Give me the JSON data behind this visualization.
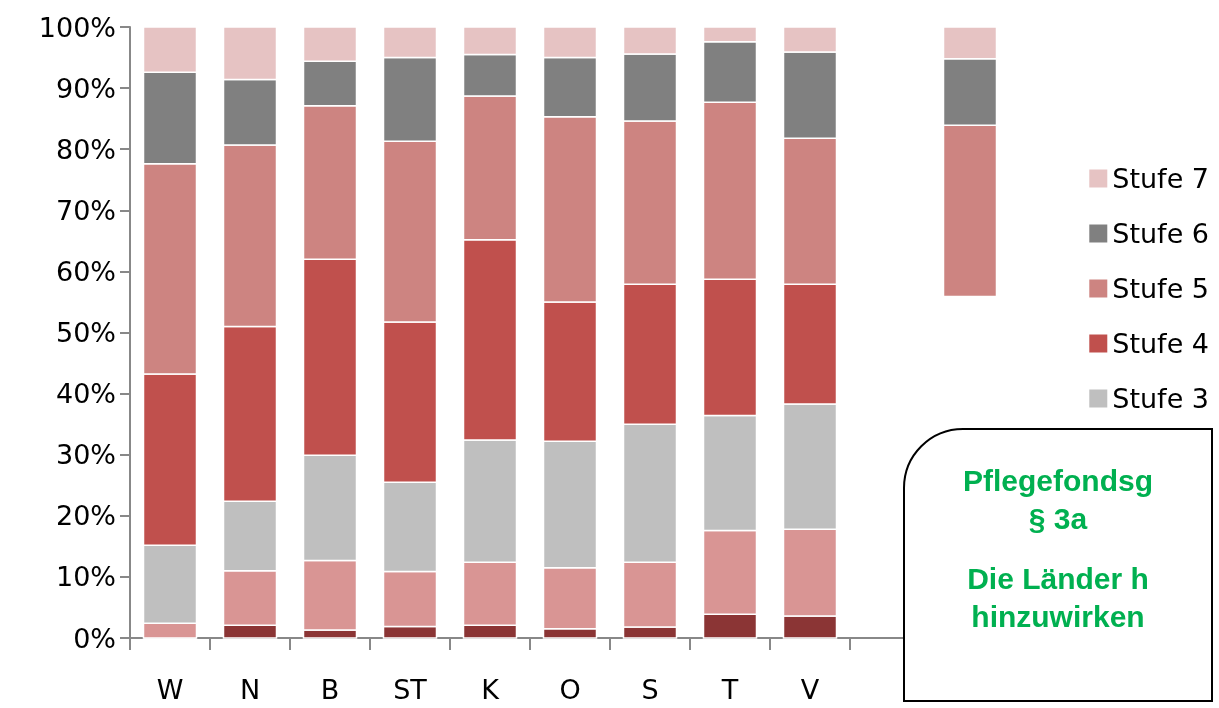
{
  "chart_data": {
    "type": "bar",
    "stacked": true,
    "categories": [
      "W",
      "N",
      "B",
      "ST",
      "K",
      "O",
      "S",
      "T",
      "V",
      null,
      null
    ],
    "series": [
      {
        "color": "#8b3535",
        "values": [
          0,
          2.1,
          1.3,
          1.9,
          2.1,
          1.5,
          1.8,
          3.9,
          3.6,
          null,
          null
        ]
      },
      {
        "color": "#d99594",
        "values": [
          2.4,
          8.9,
          11.4,
          9.0,
          10.3,
          10.0,
          10.6,
          13.7,
          14.2,
          null,
          null
        ]
      },
      {
        "name": "Stufe 3",
        "color": "#bfbfbf",
        "values": [
          12.8,
          11.4,
          17.2,
          14.6,
          20.0,
          20.7,
          22.6,
          18.8,
          20.5,
          null,
          null
        ]
      },
      {
        "name": "Stufe 4",
        "color": "#c0504d",
        "values": [
          28.0,
          28.6,
          32.1,
          26.2,
          32.8,
          22.8,
          22.9,
          22.3,
          19.6,
          null,
          null
        ]
      },
      {
        "name": "Stufe 5",
        "color": "#cd8481",
        "values": [
          34.4,
          29.7,
          25.1,
          29.6,
          23.5,
          30.3,
          26.7,
          29.0,
          23.9,
          null,
          28.0
        ],
        "base": [
          null,
          null,
          null,
          null,
          null,
          null,
          null,
          null,
          null,
          null,
          55.9
        ]
      },
      {
        "name": "Stufe 6",
        "color": "#808080",
        "values": [
          15.0,
          10.7,
          7.3,
          13.7,
          6.8,
          9.7,
          11.0,
          9.9,
          14.1,
          null,
          10.9
        ]
      },
      {
        "name": "Stufe 7",
        "color": "#e6c3c3",
        "values": [
          7.4,
          8.6,
          5.6,
          5.0,
          4.5,
          5.0,
          4.4,
          2.4,
          4.1,
          null,
          5.2
        ]
      }
    ],
    "ylim": [
      0,
      100
    ],
    "yticks": [
      {
        "value": 0,
        "label": "0%"
      },
      {
        "value": 10,
        "label": "10%"
      },
      {
        "value": 20,
        "label": "20%"
      },
      {
        "value": 30,
        "label": "30%"
      },
      {
        "value": 40,
        "label": "40%"
      },
      {
        "value": 50,
        "label": "50%"
      },
      {
        "value": 60,
        "label": "60%"
      },
      {
        "value": 70,
        "label": "70%"
      },
      {
        "value": 80,
        "label": "80%"
      },
      {
        "value": 90,
        "label": "90%"
      },
      {
        "value": 100,
        "label": "100%"
      }
    ],
    "grid": false,
    "legend": "right",
    "annotations": [
      "Pflegefondsg",
      "§ 3a",
      "Die Länder h",
      "hinzuwirken"
    ]
  }
}
